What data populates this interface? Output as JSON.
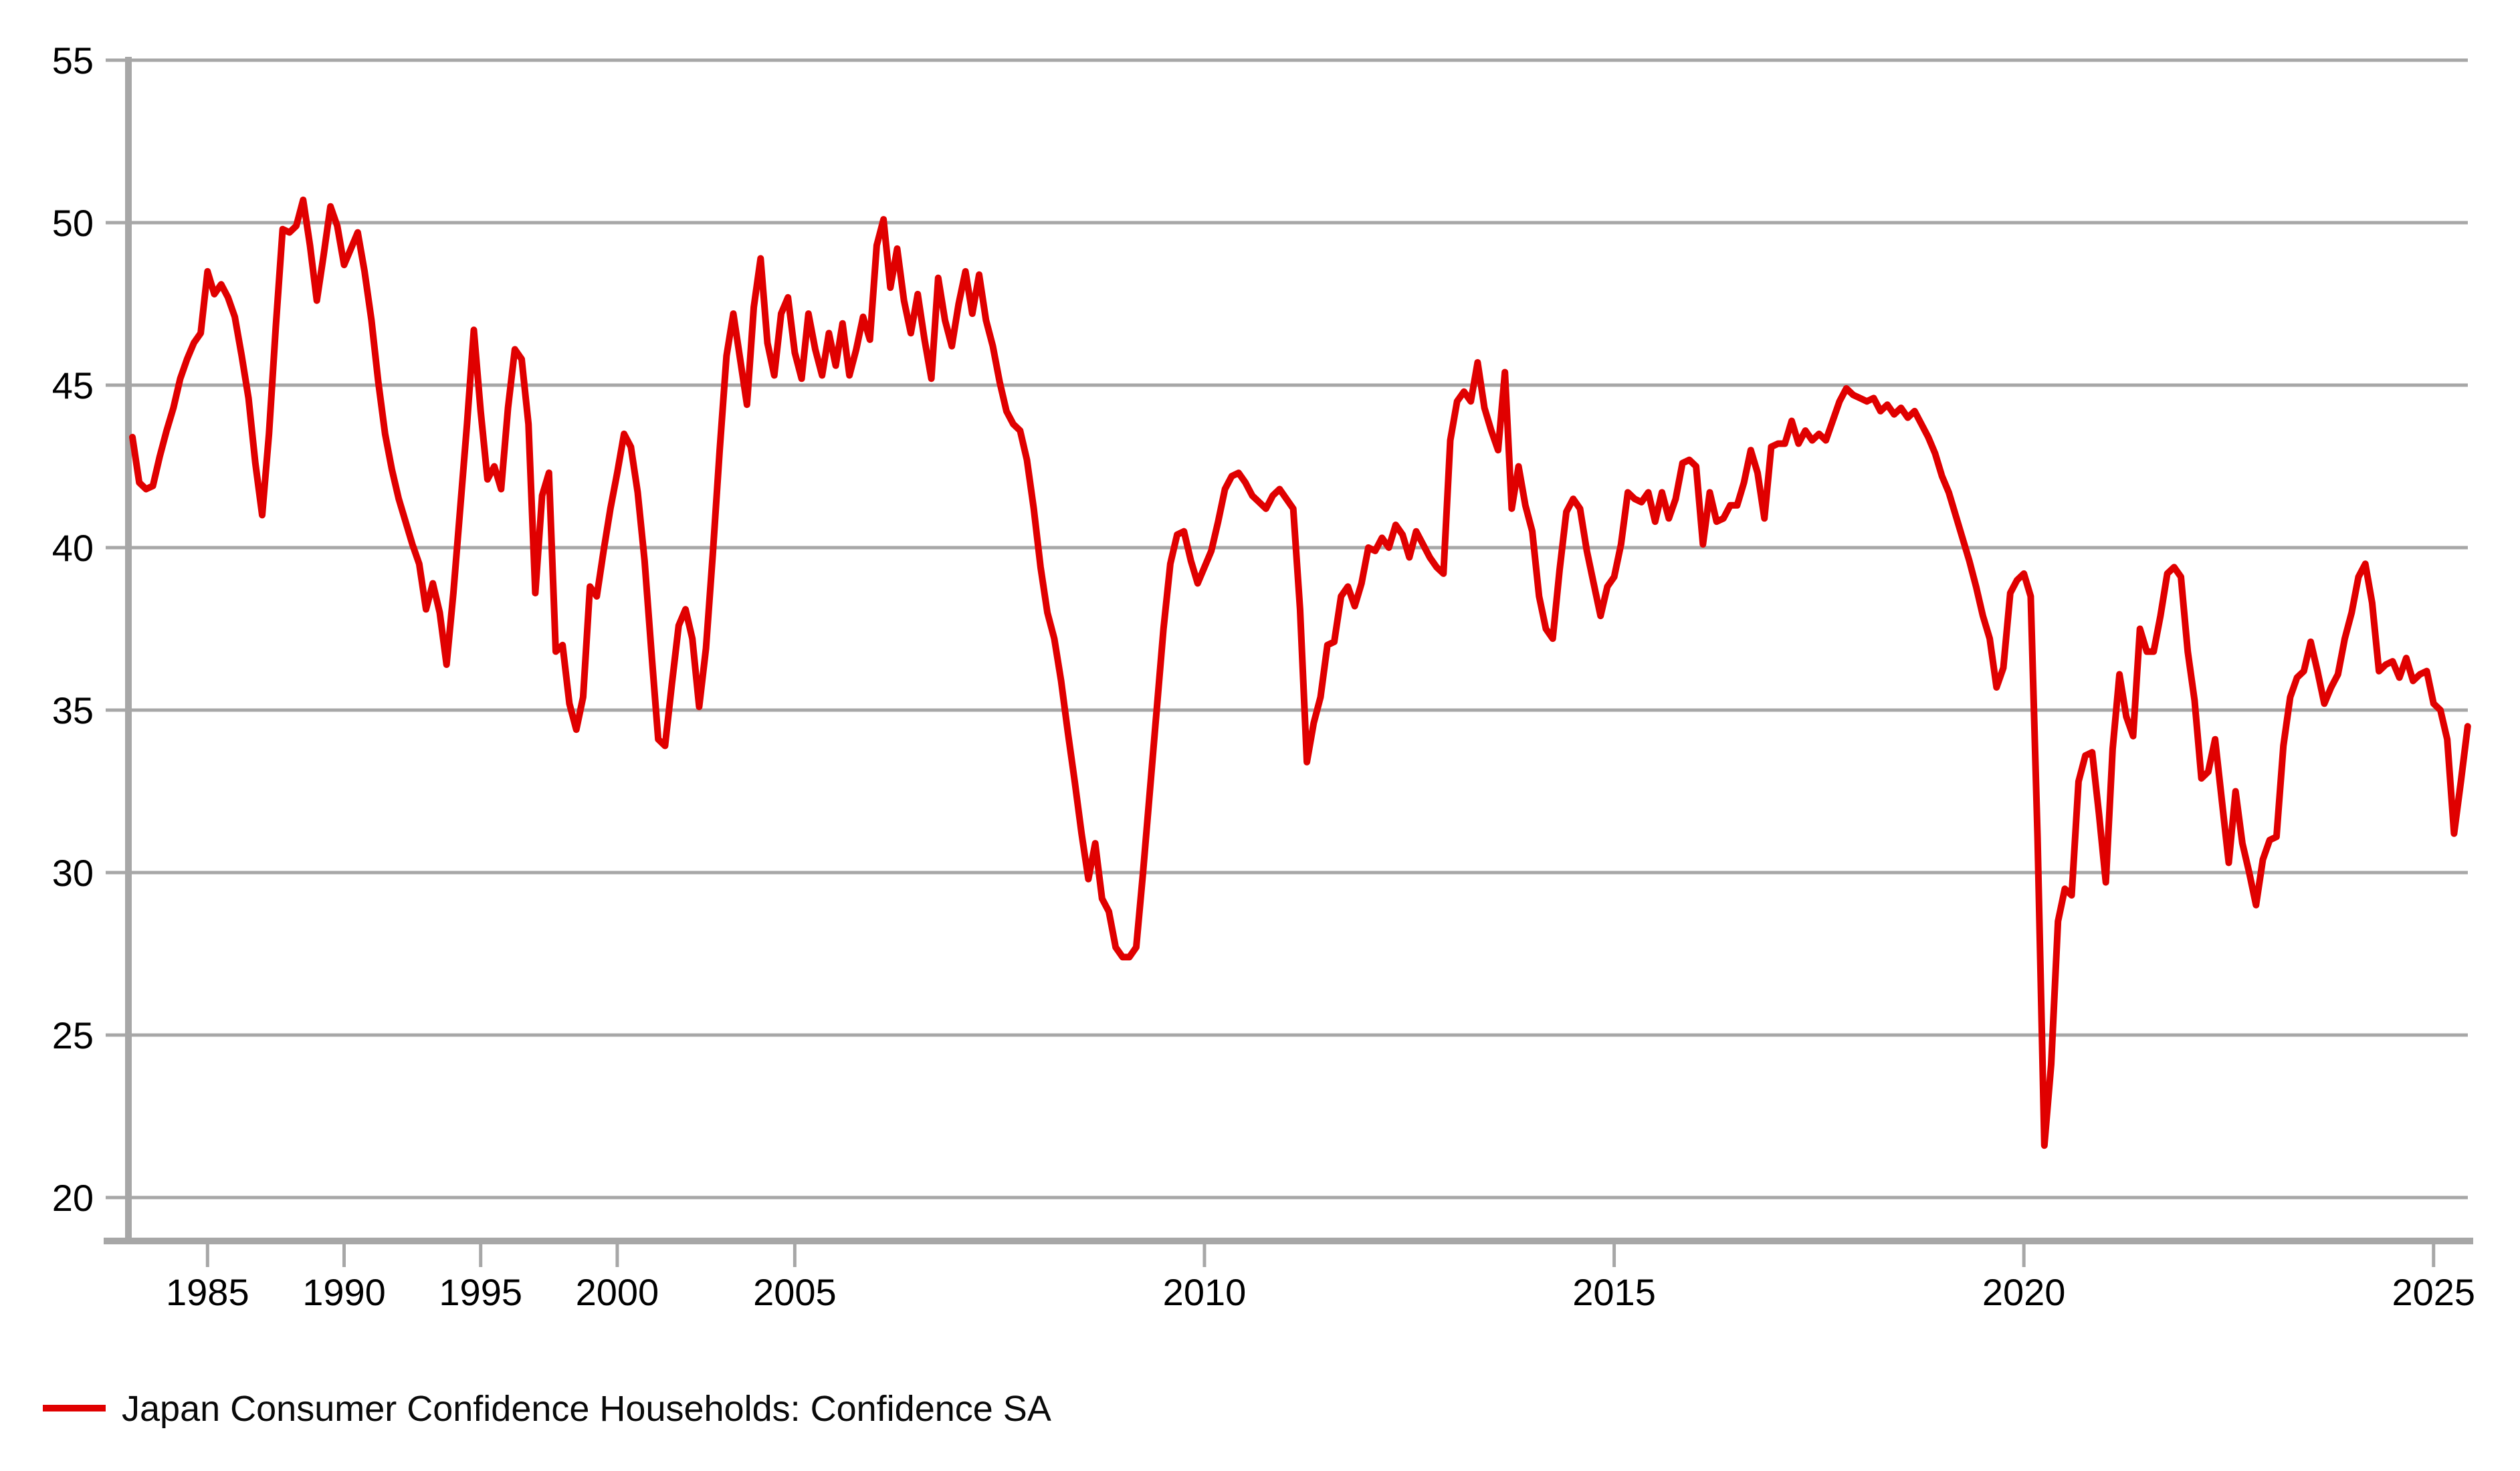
{
  "chart_data": {
    "type": "line",
    "title": "",
    "xlabel": "",
    "ylabel": "",
    "grid": "horizontal",
    "legend_position": "bottom-left",
    "background_color": "#ffffff",
    "grid_color": "#a7a7a7",
    "axis_color": "#a7a7a7",
    "label_color": "#000000",
    "ylim": [
      20,
      55
    ],
    "y_ticks": [
      55,
      50,
      45,
      40,
      35,
      30,
      25,
      20
    ],
    "x_ticks": [
      1985,
      1990,
      1995,
      2000,
      2005,
      2010,
      2015,
      2020,
      2025
    ],
    "legend": [
      {
        "label": "Japan Consumer Confidence Households: Confidence SA",
        "color": "#e00000"
      }
    ],
    "series": [
      {
        "name": "Japan Consumer Confidence Households: Confidence SA",
        "color": "#e00000",
        "axis_note": "x axis is ordinal: one step per observation; quarterly Jun 1982 - Mar 2004, monthly Apr 2004 - Jun 2025",
        "quarterly": {
          "start": "1982-06",
          "values": [
            43.4,
            42.0,
            41.8,
            41.9,
            42.8,
            43.6,
            44.3,
            45.2,
            45.8,
            46.3,
            46.6,
            48.5,
            47.8,
            48.1,
            47.7,
            47.1,
            45.9,
            44.6,
            42.6,
            41.0,
            43.5,
            46.8,
            49.8,
            49.7,
            49.9,
            50.7,
            49.3,
            47.6,
            49.0,
            50.5,
            49.9,
            48.7,
            49.2,
            49.7,
            48.5,
            47.0,
            45.1,
            43.5,
            42.4,
            41.5,
            40.8,
            40.1,
            39.5,
            38.1,
            38.9,
            38.0,
            36.4,
            38.6,
            41.2,
            43.8,
            46.7,
            44.2,
            42.1,
            42.5,
            41.8,
            44.3,
            46.1,
            45.8,
            43.8,
            38.6,
            41.6,
            42.3,
            36.8,
            37.0,
            35.2,
            34.4,
            35.4,
            38.8,
            38.5,
            39.9,
            41.2,
            42.3,
            43.5,
            43.1,
            41.7,
            39.6,
            36.8,
            34.1,
            33.9,
            35.8,
            37.6,
            38.1,
            37.2,
            35.1,
            36.9,
            39.8,
            43.0,
            45.9
          ]
        },
        "monthly": {
          "start": "2004-04",
          "values": [
            47.2,
            45.8,
            44.4,
            47.4,
            48.9,
            46.3,
            45.3,
            47.2,
            47.7,
            46.0,
            45.2,
            47.2,
            46.1,
            45.3,
            46.6,
            45.6,
            46.9,
            45.3,
            46.1,
            47.1,
            46.4,
            49.3,
            50.1,
            48.0,
            49.2,
            47.6,
            46.6,
            47.8,
            46.4,
            45.2,
            48.3,
            47.0,
            46.2,
            47.5,
            48.5,
            47.2,
            48.4,
            47.0,
            46.2,
            45.1,
            44.2,
            43.8,
            43.6,
            42.7,
            41.2,
            39.4,
            38.0,
            37.2,
            35.9,
            34.3,
            32.8,
            31.2,
            29.8,
            30.9,
            29.2,
            28.8,
            27.7,
            27.4,
            27.4,
            27.7,
            30.0,
            32.5,
            35.0,
            37.5,
            39.5,
            40.4,
            40.5,
            39.6,
            38.9,
            39.4,
            39.9,
            40.8,
            41.8,
            42.2,
            42.3,
            42.0,
            41.6,
            41.4,
            41.2,
            41.6,
            41.8,
            41.5,
            41.2,
            38.1,
            33.4,
            34.6,
            35.4,
            37.0,
            37.1,
            38.5,
            38.8,
            38.2,
            38.9,
            40.0,
            39.9,
            40.3,
            40.0,
            40.7,
            40.4,
            39.7,
            40.5,
            40.1,
            39.7,
            39.4,
            39.2,
            43.3,
            44.5,
            44.8,
            44.5,
            45.7,
            44.3,
            43.6,
            43.0,
            45.4,
            41.2,
            42.5,
            41.3,
            40.5,
            38.5,
            37.5,
            37.2,
            39.3,
            41.1,
            41.5,
            41.2,
            39.9,
            38.9,
            37.9,
            38.8,
            39.1,
            40.1,
            41.7,
            41.5,
            41.4,
            41.7,
            40.8,
            41.7,
            40.9,
            41.5,
            42.6,
            42.7,
            42.5,
            40.1,
            41.7,
            40.8,
            40.9,
            41.3,
            41.3,
            42.0,
            43.0,
            42.3,
            40.9,
            43.1,
            43.2,
            43.2,
            43.9,
            43.2,
            43.6,
            43.3,
            43.5,
            43.3,
            43.9,
            44.5,
            44.9,
            44.7,
            44.6,
            44.5,
            44.6,
            44.2,
            44.4,
            44.1,
            44.3,
            44.0,
            44.2,
            43.8,
            43.4,
            42.9,
            42.2,
            41.7,
            41.0,
            40.3,
            39.6,
            38.8,
            37.9,
            37.2,
            35.7,
            36.3,
            38.6,
            39.0,
            39.2,
            38.5,
            31.1,
            21.6,
            24.1,
            28.5,
            29.5,
            29.3,
            32.8,
            33.6,
            33.7,
            31.8,
            29.7,
            33.8,
            36.1,
            34.8,
            34.2,
            37.5,
            36.8,
            36.8,
            37.9,
            39.2,
            39.4,
            39.1,
            36.8,
            35.3,
            32.9,
            33.1,
            34.1,
            32.2,
            30.3,
            32.5,
            30.9,
            30.0,
            29.0,
            30.4,
            31.0,
            31.1,
            33.9,
            35.4,
            36.0,
            36.2,
            37.1,
            36.2,
            35.2,
            35.7,
            36.1,
            37.2,
            38.0,
            39.1,
            39.5,
            38.3,
            36.2,
            36.4,
            36.5,
            36.0,
            36.6,
            35.9,
            36.1,
            36.2,
            35.2,
            35.0,
            34.1,
            31.2,
            32.8,
            34.5
          ]
        }
      }
    ]
  }
}
